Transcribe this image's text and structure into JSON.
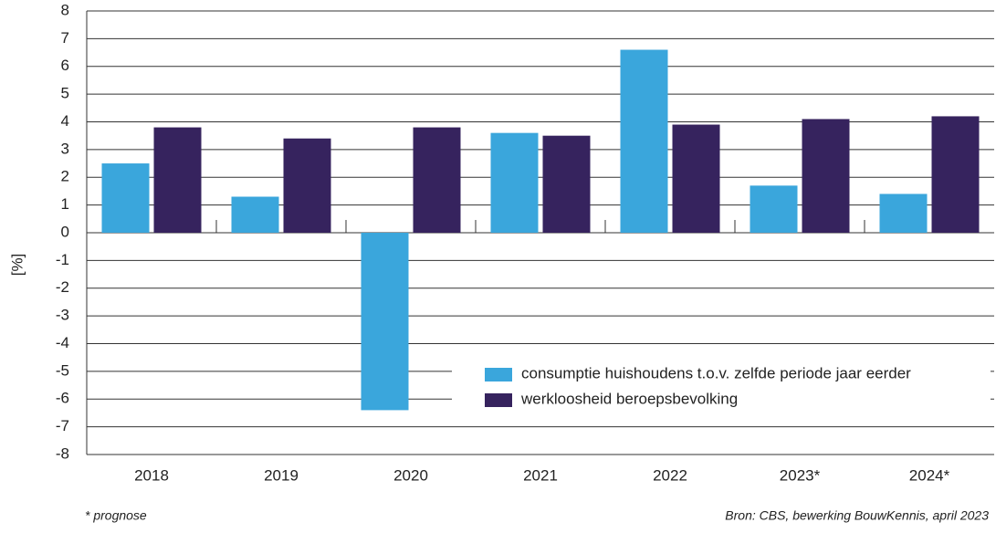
{
  "chart_data": {
    "type": "bar",
    "y_label": "[%]",
    "categories": [
      "2018",
      "2019",
      "2020",
      "2021",
      "2022",
      "2023*",
      "2024*"
    ],
    "series": [
      {
        "name": "consumptie huishoudens t.o.v. zelfde periode jaar eerder",
        "color": "#3aa6dc",
        "values": [
          2.5,
          1.3,
          -6.4,
          3.6,
          6.6,
          1.7,
          1.4
        ]
      },
      {
        "name": "werkloosheid beroepsbevolking",
        "color": "#36235e",
        "values": [
          3.8,
          3.4,
          3.8,
          3.5,
          3.9,
          4.1,
          4.2
        ]
      }
    ],
    "ylim": [
      -8,
      8
    ],
    "yticks": [
      8,
      7,
      6,
      5,
      4,
      3,
      2,
      1,
      0,
      -1,
      -2,
      -3,
      -4,
      -5,
      -6,
      -7,
      -8
    ],
    "grid": true,
    "legend": "lower right",
    "footnote": "* prognose",
    "source": "Bron: CBS, bewerking BouwKennis, april 2023"
  }
}
